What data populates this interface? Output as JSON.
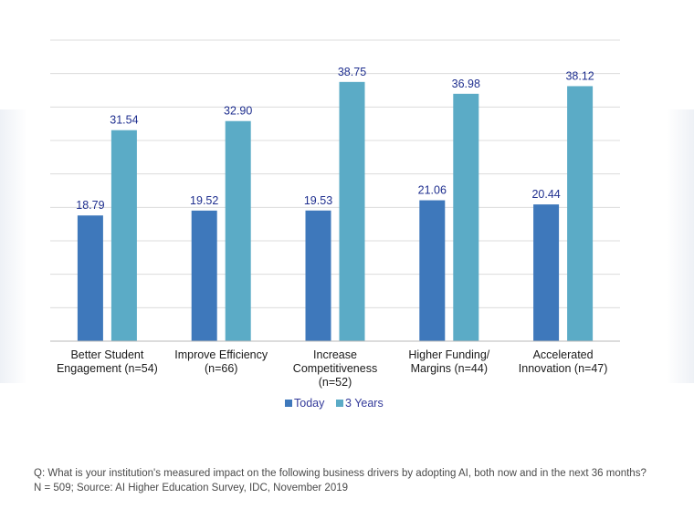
{
  "chart_data": {
    "type": "bar",
    "categories": [
      [
        "Better Student",
        "Engagement (n=54)"
      ],
      [
        "Improve Efficiency",
        "(n=66)"
      ],
      [
        "Increase",
        "Competitiveness",
        "(n=52)"
      ],
      [
        "Higher Funding/",
        "Margins (n=44)"
      ],
      [
        "Accelerated",
        "Innovation (n=47)"
      ]
    ],
    "series": [
      {
        "name": "Today",
        "values": [
          18.79,
          19.52,
          19.53,
          21.06,
          20.44
        ],
        "color": "#3e78bb"
      },
      {
        "name": "3 Years",
        "values": [
          31.54,
          32.9,
          38.75,
          36.98,
          38.12
        ],
        "color": "#5babc6"
      }
    ],
    "value_labels": [
      [
        "18.79",
        "19.52",
        "19.53",
        "21.06",
        "20.44"
      ],
      [
        "31.54",
        "32.90",
        "38.75",
        "36.98",
        "38.12"
      ]
    ],
    "ylim": [
      0,
      45
    ],
    "gridline_step": 5,
    "grid": true,
    "legend_position": "bottom"
  },
  "footnote": {
    "line1": "Q: What is your institution's measured impact on the following business drivers by adopting AI, both now and in the next 36 months?",
    "line2": "N = 509; Source: AI Higher Education Survey, IDC, November 2019"
  }
}
